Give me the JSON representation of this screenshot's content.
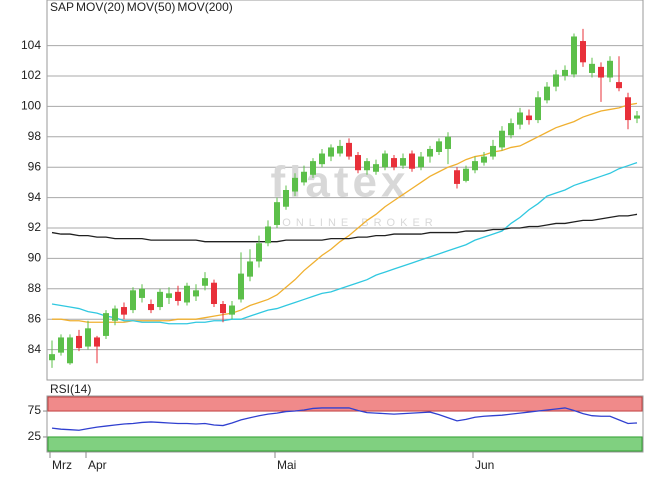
{
  "chart_data": [
    {
      "type": "candlestick",
      "name": "SAP",
      "color": "#e8303a",
      "up_color": "#5cbf4a",
      "down_color": "#e8303a",
      "watermark": "flatex",
      "watermark_sub": "ONLINE BROKER",
      "categories": [
        "Mrz",
        null,
        null,
        null,
        "Apr",
        null,
        null,
        null,
        null,
        null,
        null,
        null,
        null,
        null,
        null,
        null,
        null,
        null,
        null,
        null,
        null,
        null,
        null,
        null,
        null,
        "Mai",
        null,
        null,
        null,
        null,
        null,
        null,
        null,
        null,
        null,
        null,
        null,
        null,
        null,
        null,
        null,
        null,
        null,
        null,
        null,
        null,
        null,
        "Jun",
        null,
        null,
        null,
        null,
        null,
        null,
        null,
        null,
        null,
        null,
        null,
        null,
        null,
        null,
        null,
        null,
        null,
        null
      ],
      "open": [
        83.3,
        83.8,
        83.1,
        84.9,
        84.2,
        84.8,
        84.9,
        85.9,
        86.8,
        86.6,
        87.4,
        87.0,
        86.8,
        87.4,
        87.8,
        87.1,
        87.5,
        88.2,
        88.4,
        87.0,
        86.3,
        87.3,
        88.8,
        89.8,
        91.0,
        92.2,
        93.4,
        94.4,
        95.0,
        95.5,
        96.2,
        96.7,
        96.9,
        97.6,
        96.8,
        95.8,
        95.7,
        96.0,
        96.6,
        96.1,
        96.9,
        96.0,
        96.7,
        97.0,
        97.2,
        95.8,
        95.1,
        95.8,
        96.3,
        96.7,
        97.3,
        98.1,
        98.8,
        99.4,
        99.1,
        100.4,
        101.3,
        102.0,
        102.1,
        104.3,
        102.2,
        102.6,
        101.9,
        101.6,
        100.6,
        99.2
      ],
      "high": [
        84.6,
        85.0,
        85.0,
        85.3,
        85.9,
        84.9,
        86.6,
        86.9,
        87.1,
        88.1,
        88.3,
        87.3,
        88.0,
        88.1,
        88.2,
        88.4,
        88.3,
        89.1,
        88.6,
        87.2,
        87.2,
        90.4,
        90.6,
        91.5,
        92.5,
        94.0,
        94.8,
        95.6,
        96.1,
        96.6,
        97.2,
        97.5,
        97.8,
        97.9,
        97.0,
        96.6,
        96.5,
        97.1,
        96.8,
        96.9,
        97.1,
        97.0,
        97.4,
        97.9,
        98.3,
        96.0,
        96.1,
        96.7,
        97.0,
        97.8,
        98.7,
        99.2,
        99.9,
        99.8,
        101.0,
        101.6,
        102.4,
        102.7,
        104.8,
        105.1,
        103.2,
        102.9,
        103.3,
        103.3,
        100.9,
        99.7
      ],
      "low": [
        82.8,
        83.6,
        83.0,
        83.9,
        84.0,
        83.1,
        84.7,
        85.6,
        86.0,
        86.4,
        87.1,
        86.4,
        86.6,
        87.0,
        86.9,
        86.9,
        87.2,
        87.9,
        86.8,
        85.8,
        86.0,
        87.1,
        88.5,
        89.4,
        90.8,
        92.0,
        93.2,
        94.1,
        94.8,
        95.3,
        96.0,
        96.4,
        96.7,
        96.5,
        95.6,
        95.5,
        95.5,
        95.8,
        95.8,
        95.9,
        95.7,
        95.8,
        96.3,
        96.8,
        96.2,
        94.6,
        95.0,
        95.6,
        96.1,
        96.5,
        97.1,
        97.9,
        98.5,
        98.8,
        98.9,
        100.2,
        101.0,
        101.7,
        101.9,
        102.6,
        101.9,
        100.3,
        101.6,
        101.0,
        98.5,
        98.9
      ],
      "close": [
        83.7,
        84.8,
        84.8,
        84.1,
        85.4,
        84.2,
        86.4,
        86.7,
        86.3,
        87.9,
        88.0,
        86.6,
        87.8,
        87.7,
        87.2,
        88.2,
        87.9,
        88.7,
        87.0,
        86.4,
        86.9,
        89.0,
        89.8,
        91.0,
        92.1,
        93.7,
        94.5,
        95.3,
        95.7,
        96.4,
        96.9,
        97.3,
        97.4,
        96.7,
        95.8,
        96.4,
        96.2,
        96.9,
        96.0,
        96.6,
        95.9,
        96.7,
        97.2,
        97.7,
        98.0,
        94.9,
        95.9,
        96.4,
        96.7,
        97.4,
        98.4,
        98.9,
        99.6,
        99.1,
        100.6,
        101.3,
        102.1,
        102.4,
        104.6,
        102.9,
        102.8,
        101.9,
        103.0,
        101.2,
        99.1,
        99.4
      ],
      "series": [
        {
          "name": "MOV(20)",
          "color": "#f0b030",
          "values": [
            86.0,
            86.0,
            85.9,
            85.9,
            85.8,
            85.8,
            85.8,
            85.8,
            85.8,
            85.9,
            85.9,
            85.9,
            85.9,
            85.9,
            86.0,
            86.0,
            86.0,
            86.1,
            86.2,
            86.3,
            86.4,
            86.6,
            86.9,
            87.1,
            87.3,
            87.6,
            88.1,
            88.6,
            89.2,
            89.7,
            90.2,
            90.6,
            91.1,
            91.5,
            92.0,
            92.5,
            92.9,
            93.4,
            93.8,
            94.2,
            94.6,
            95.0,
            95.4,
            95.7,
            96.0,
            96.2,
            96.5,
            96.7,
            96.8,
            97.0,
            97.1,
            97.3,
            97.4,
            97.7,
            98.0,
            98.3,
            98.6,
            98.8,
            99.0,
            99.3,
            99.5,
            99.7,
            99.8,
            99.9,
            100.1,
            100.2
          ]
        },
        {
          "name": "MOV(50)",
          "color": "#30c8e0",
          "values": [
            87.0,
            86.9,
            86.8,
            86.7,
            86.5,
            86.4,
            86.2,
            86.1,
            85.9,
            85.9,
            85.8,
            85.8,
            85.8,
            85.7,
            85.7,
            85.7,
            85.8,
            85.8,
            85.9,
            85.9,
            86.0,
            86.0,
            86.2,
            86.4,
            86.6,
            86.7,
            86.9,
            87.1,
            87.3,
            87.5,
            87.7,
            87.8,
            88.0,
            88.2,
            88.4,
            88.6,
            88.9,
            89.1,
            89.3,
            89.5,
            89.7,
            89.9,
            90.1,
            90.3,
            90.5,
            90.7,
            90.9,
            91.2,
            91.4,
            91.6,
            91.8,
            92.3,
            92.7,
            93.2,
            93.6,
            94.1,
            94.3,
            94.5,
            94.8,
            95.0,
            95.2,
            95.4,
            95.6,
            95.9,
            96.1,
            96.3
          ]
        },
        {
          "name": "MOV(200)",
          "color": "#202020",
          "values": [
            91.7,
            91.6,
            91.6,
            91.5,
            91.5,
            91.4,
            91.4,
            91.3,
            91.3,
            91.3,
            91.3,
            91.2,
            91.2,
            91.2,
            91.2,
            91.2,
            91.2,
            91.1,
            91.1,
            91.1,
            91.1,
            91.1,
            91.1,
            91.1,
            91.1,
            91.1,
            91.2,
            91.2,
            91.2,
            91.2,
            91.2,
            91.3,
            91.3,
            91.3,
            91.4,
            91.4,
            91.5,
            91.5,
            91.6,
            91.6,
            91.6,
            91.6,
            91.7,
            91.7,
            91.7,
            91.7,
            91.8,
            91.8,
            91.8,
            91.9,
            91.9,
            92.0,
            92.0,
            92.1,
            92.1,
            92.2,
            92.3,
            92.3,
            92.4,
            92.5,
            92.5,
            92.6,
            92.7,
            92.8,
            92.8,
            92.9
          ]
        }
      ],
      "ylim": [
        82,
        107
      ],
      "yticks": [
        84,
        86,
        88,
        90,
        92,
        94,
        96,
        98,
        100,
        102,
        104
      ],
      "grid": true
    },
    {
      "type": "line",
      "series": [
        {
          "name": "RSI(14)",
          "color": "#3040d0",
          "values": [
            42,
            40,
            39,
            38,
            41,
            44,
            46,
            48,
            50,
            51,
            53,
            54,
            53,
            52,
            51,
            51,
            50,
            51,
            48,
            47,
            52,
            58,
            62,
            66,
            69,
            71,
            74,
            75,
            77,
            80,
            81,
            81,
            81,
            81,
            76,
            72,
            71,
            70,
            69,
            70,
            71,
            72,
            73,
            68,
            62,
            56,
            59,
            63,
            65,
            66,
            67,
            69,
            71,
            73,
            75,
            77,
            79,
            81,
            76,
            70,
            66,
            65,
            65,
            58,
            51,
            52
          ]
        }
      ],
      "band_colors": [
        "#f08a8a",
        "#80d080"
      ],
      "ylim": [
        -4,
        104
      ],
      "yticks": [
        25,
        75
      ]
    }
  ]
}
